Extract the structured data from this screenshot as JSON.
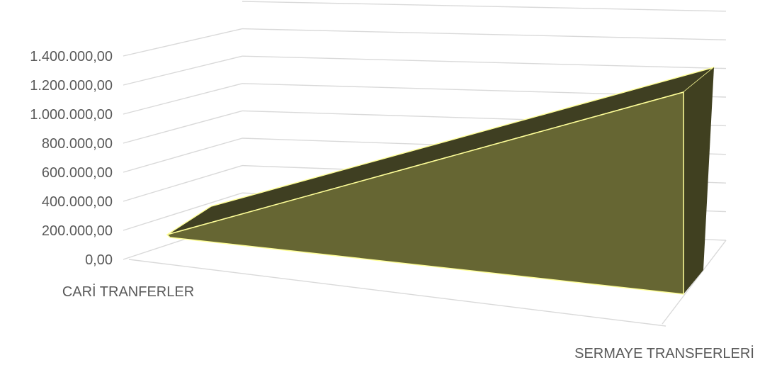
{
  "chart_data": {
    "type": "area",
    "categories": [
      "CARİ TRANFERLER",
      "SERMAYE TRANSFERLERİ"
    ],
    "values": [
      130000,
      1330000
    ],
    "y_ticks": [
      "0,00",
      "200.000,00",
      "400.000,00",
      "600.000,00",
      "800.000,00",
      "1.000.000,00",
      "1.200.000,00",
      "1.400.000,00"
    ],
    "ylim": [
      0,
      1400000
    ],
    "grid": true,
    "legend": "none",
    "colors": {
      "front": "#666633",
      "top": "#3f3f22",
      "side": "#404020",
      "edge": "#ffff99",
      "grid": "#d9d9d9",
      "text": "#595959"
    }
  }
}
